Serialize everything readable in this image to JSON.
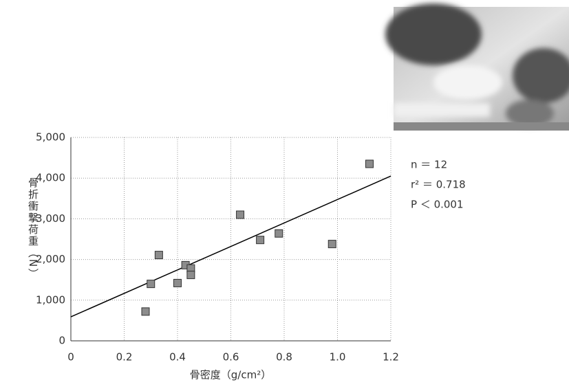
{
  "chart_data": {
    "type": "scatter",
    "x": [
      0.28,
      0.3,
      0.33,
      0.4,
      0.43,
      0.45,
      0.45,
      0.635,
      0.71,
      0.78,
      0.98,
      1.12
    ],
    "values": [
      720,
      1400,
      2110,
      1420,
      1860,
      1780,
      1620,
      3100,
      2480,
      2640,
      2380,
      4350
    ],
    "color": "#8c8c8c",
    "trendline": {
      "x": [
        0,
        1.2
      ],
      "y": [
        590,
        4050
      ],
      "color": "#000000"
    },
    "xlim": [
      0,
      1.2
    ],
    "ylim": [
      0,
      5000
    ],
    "xticks": [
      0,
      0.2,
      0.4,
      0.6,
      0.8,
      {
        "value": 1.0,
        "label": "1.0"
      },
      1.2
    ],
    "yticks": [
      0,
      {
        "value": 1000,
        "label": "1,000"
      },
      {
        "value": 2000,
        "label": "2,000"
      },
      {
        "value": 3000,
        "label": "3,000"
      },
      {
        "value": 4000,
        "label": "4,000"
      },
      {
        "value": 5000,
        "label": "5,000"
      }
    ],
    "grid": true,
    "x_label": "骨密度（g/cm²）",
    "y_label": "骨折衝撃荷重（N）",
    "annotations": [
      "n ＝ 12",
      "r² ＝ 0.718",
      "P ＜ 0.001"
    ]
  }
}
